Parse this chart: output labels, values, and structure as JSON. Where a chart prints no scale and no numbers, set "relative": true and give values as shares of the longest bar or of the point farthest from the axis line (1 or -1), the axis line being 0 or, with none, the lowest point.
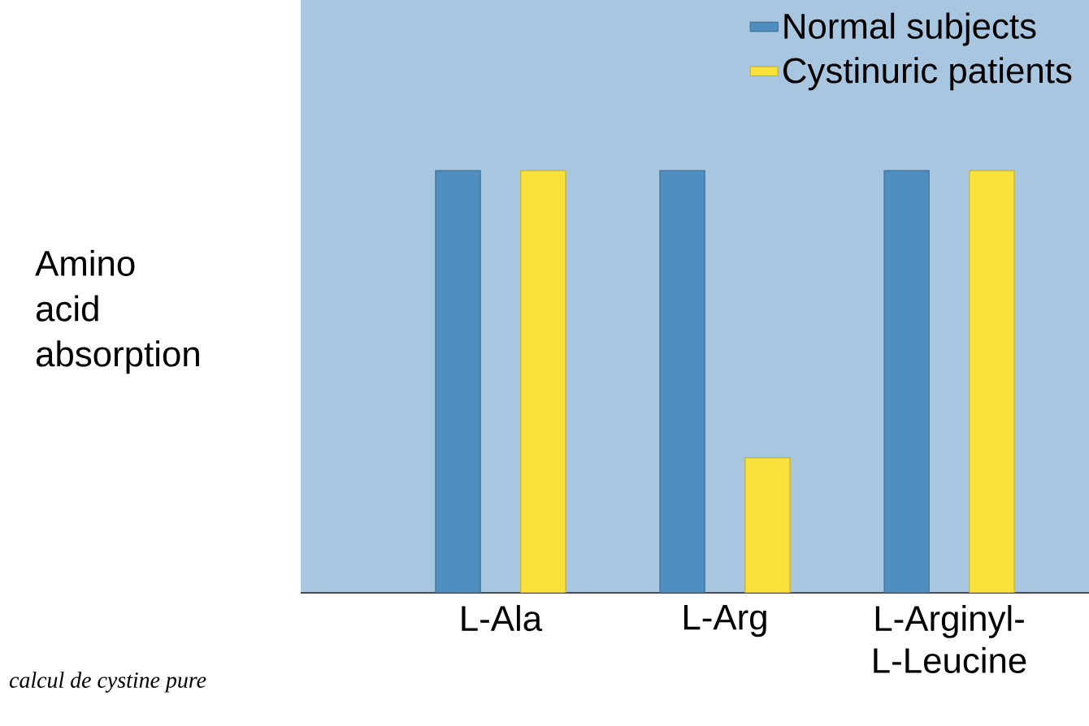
{
  "chart_data": {
    "type": "bar",
    "relative": true,
    "ylabel": "Amino acid absorption",
    "categories": [
      "L-Ala",
      "L-Arg",
      "L-Arginyl-L-Leucine"
    ],
    "series": [
      {
        "name": "Normal subjects",
        "color": "#4f8fc0",
        "values": [
          1,
          1,
          1
        ]
      },
      {
        "name": "Cystinuric patients",
        "color": "#f9e03a",
        "values": [
          1,
          0.32,
          1
        ]
      }
    ],
    "legend": "top right",
    "annotations": [
      "calcul de cystine pure"
    ]
  }
}
